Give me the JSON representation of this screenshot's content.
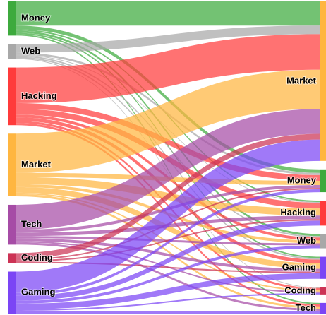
{
  "chart_data": {
    "type": "sankey",
    "sources": [
      {
        "name": "Money",
        "color": "#3daa3d"
      },
      {
        "name": "Web",
        "color": "#a8a8a8"
      },
      {
        "name": "Hacking",
        "color": "#ff3b3b"
      },
      {
        "name": "Market",
        "color": "#ffb640"
      },
      {
        "name": "Tech",
        "color": "#a64ca6"
      },
      {
        "name": "Coding",
        "color": "#cc3355"
      },
      {
        "name": "Gaming",
        "color": "#7b45f5"
      }
    ],
    "targets": [
      {
        "name": "Market",
        "color": "#ffb640"
      },
      {
        "name": "Money",
        "color": "#3daa3d"
      },
      {
        "name": "Hacking",
        "color": "#ff3b3b"
      },
      {
        "name": "Web",
        "color": "#a8a8a8"
      },
      {
        "name": "Gaming",
        "color": "#7b45f5"
      },
      {
        "name": "Coding",
        "color": "#cc3355"
      },
      {
        "name": "Tech",
        "color": "#7b45f5"
      }
    ],
    "links": [
      {
        "source": "Money",
        "target": "Market",
        "value": 34
      },
      {
        "source": "Money",
        "target": "Money",
        "value": 5
      },
      {
        "source": "Money",
        "target": "Hacking",
        "value": 2
      },
      {
        "source": "Money",
        "target": "Web",
        "value": 3
      },
      {
        "source": "Money",
        "target": "Gaming",
        "value": 2
      },
      {
        "source": "Money",
        "target": "Tech",
        "value": 2
      },
      {
        "source": "Web",
        "target": "Market",
        "value": 12
      },
      {
        "source": "Web",
        "target": "Money",
        "value": 3
      },
      {
        "source": "Web",
        "target": "Hacking",
        "value": 1
      },
      {
        "source": "Web",
        "target": "Web",
        "value": 2
      },
      {
        "source": "Web",
        "target": "Gaming",
        "value": 2
      },
      {
        "source": "Web",
        "target": "Coding",
        "value": 1
      },
      {
        "source": "Hacking",
        "target": "Market",
        "value": 50
      },
      {
        "source": "Hacking",
        "target": "Money",
        "value": 8
      },
      {
        "source": "Hacking",
        "target": "Hacking",
        "value": 8
      },
      {
        "source": "Hacking",
        "target": "Web",
        "value": 4
      },
      {
        "source": "Hacking",
        "target": "Gaming",
        "value": 5
      },
      {
        "source": "Hacking",
        "target": "Coding",
        "value": 3
      },
      {
        "source": "Hacking",
        "target": "Tech",
        "value": 3
      },
      {
        "source": "Market",
        "target": "Market",
        "value": 55
      },
      {
        "source": "Market",
        "target": "Money",
        "value": 6
      },
      {
        "source": "Market",
        "target": "Hacking",
        "value": 10
      },
      {
        "source": "Market",
        "target": "Web",
        "value": 4
      },
      {
        "source": "Market",
        "target": "Gaming",
        "value": 8
      },
      {
        "source": "Market",
        "target": "Coding",
        "value": 2
      },
      {
        "source": "Market",
        "target": "Tech",
        "value": 3
      },
      {
        "source": "Tech",
        "target": "Market",
        "value": 35
      },
      {
        "source": "Tech",
        "target": "Money",
        "value": 4
      },
      {
        "source": "Tech",
        "target": "Hacking",
        "value": 5
      },
      {
        "source": "Tech",
        "target": "Web",
        "value": 3
      },
      {
        "source": "Tech",
        "target": "Gaming",
        "value": 4
      },
      {
        "source": "Tech",
        "target": "Coding",
        "value": 2
      },
      {
        "source": "Tech",
        "target": "Tech",
        "value": 3
      },
      {
        "source": "Coding",
        "target": "Market",
        "value": 8
      },
      {
        "source": "Coding",
        "target": "Money",
        "value": 2
      },
      {
        "source": "Coding",
        "target": "Hacking",
        "value": 2
      },
      {
        "source": "Coding",
        "target": "Gaming",
        "value": 2
      },
      {
        "source": "Gaming",
        "target": "Market",
        "value": 30
      },
      {
        "source": "Gaming",
        "target": "Money",
        "value": 4
      },
      {
        "source": "Gaming",
        "target": "Hacking",
        "value": 7
      },
      {
        "source": "Gaming",
        "target": "Web",
        "value": 4
      },
      {
        "source": "Gaming",
        "target": "Gaming",
        "value": 8
      },
      {
        "source": "Gaming",
        "target": "Coding",
        "value": 2
      },
      {
        "source": "Gaming",
        "target": "Tech",
        "value": 4
      }
    ]
  }
}
